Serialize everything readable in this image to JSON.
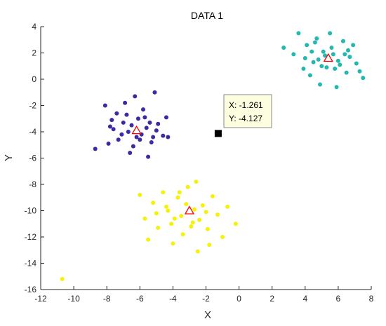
{
  "chart_data": {
    "type": "scatter",
    "title": "DATA 1",
    "xlabel": "X",
    "ylabel": "Y",
    "xlim": [
      -12,
      8
    ],
    "ylim": [
      -16,
      4
    ],
    "xticks": [
      -12,
      -10,
      -8,
      -6,
      -4,
      -2,
      0,
      2,
      4,
      6,
      8
    ],
    "yticks": [
      4,
      2,
      0,
      -2,
      -4,
      -6,
      -8,
      -10,
      -12,
      -14,
      -16
    ],
    "grid": false,
    "colors": {
      "cluster_blue": "#3a2aa3",
      "cluster_teal": "#22b8b0",
      "cluster_yellow": "#f5f20a",
      "centroid": "#ff0000",
      "selected": "#000000",
      "tooltip_bg": "#fdfde0",
      "axis": "#262626"
    },
    "series": [
      {
        "color": "#3a2aa3",
        "center": [
          -6.2,
          -3.9
        ],
        "points": [
          [
            -8.7,
            -5.3
          ],
          [
            -8.1,
            -2.0
          ],
          [
            -7.9,
            -4.9
          ],
          [
            -7.7,
            -3.1
          ],
          [
            -7.4,
            -2.6
          ],
          [
            -7.1,
            -4.2
          ],
          [
            -6.9,
            -1.8
          ],
          [
            -6.6,
            -5.6
          ],
          [
            -6.3,
            -1.3
          ],
          [
            -6.0,
            -4.6
          ],
          [
            -5.8,
            -2.3
          ],
          [
            -5.5,
            -5.9
          ],
          [
            -5.1,
            -1.0
          ],
          [
            -4.9,
            -3.4
          ],
          [
            -4.6,
            -4.3
          ],
          [
            -4.4,
            -2.9
          ],
          [
            -7.6,
            -3.8
          ],
          [
            -7.0,
            -3.3
          ],
          [
            -6.7,
            -4.0
          ],
          [
            -6.5,
            -3.5
          ],
          [
            -6.1,
            -3.0
          ],
          [
            -5.9,
            -4.2
          ],
          [
            -5.6,
            -3.7
          ],
          [
            -5.3,
            -4.8
          ],
          [
            -5.0,
            -3.9
          ],
          [
            -6.8,
            -2.7
          ],
          [
            -6.4,
            -5.1
          ],
          [
            -5.7,
            -2.9
          ],
          [
            -5.2,
            -4.4
          ],
          [
            -7.3,
            -4.6
          ],
          [
            -4.3,
            -4.4
          ],
          [
            -7.8,
            -3.6
          ],
          [
            -6.2,
            -4.4
          ],
          [
            -5.4,
            -3.3
          ]
        ]
      },
      {
        "color": "#22b8b0",
        "center": [
          5.4,
          1.6
        ],
        "points": [
          [
            2.7,
            2.4
          ],
          [
            3.3,
            1.9
          ],
          [
            3.6,
            3.5
          ],
          [
            3.9,
            0.8
          ],
          [
            4.1,
            2.6
          ],
          [
            4.3,
            0.3
          ],
          [
            4.5,
            1.3
          ],
          [
            4.7,
            3.1
          ],
          [
            4.9,
            -0.4
          ],
          [
            5.1,
            2.1
          ],
          [
            5.3,
            0.9
          ],
          [
            5.5,
            3.5
          ],
          [
            5.7,
            1.9
          ],
          [
            5.9,
            -0.6
          ],
          [
            6.1,
            1.1
          ],
          [
            6.3,
            2.9
          ],
          [
            6.5,
            0.5
          ],
          [
            6.7,
            1.7
          ],
          [
            6.9,
            2.6
          ],
          [
            7.1,
            1.2
          ],
          [
            7.3,
            0.6
          ],
          [
            7.5,
            0.1
          ],
          [
            4.4,
            2.1
          ],
          [
            4.8,
            1.5
          ],
          [
            5.0,
            1.0
          ],
          [
            5.6,
            2.4
          ],
          [
            6.0,
            1.4
          ],
          [
            6.4,
            1.9
          ],
          [
            5.2,
            1.8
          ],
          [
            5.8,
            0.8
          ],
          [
            4.6,
            2.8
          ],
          [
            6.6,
            2.2
          ],
          [
            4.0,
            1.6
          ]
        ]
      },
      {
        "color": "#f5f20a",
        "center": [
          -3.0,
          -10.0
        ],
        "points": [
          [
            -10.7,
            -15.2
          ],
          [
            -6.0,
            -8.8
          ],
          [
            -5.7,
            -10.6
          ],
          [
            -5.5,
            -12.2
          ],
          [
            -5.2,
            -9.4
          ],
          [
            -4.9,
            -11.3
          ],
          [
            -4.6,
            -8.6
          ],
          [
            -4.3,
            -10.0
          ],
          [
            -4.0,
            -12.5
          ],
          [
            -3.7,
            -9.0
          ],
          [
            -3.4,
            -11.8
          ],
          [
            -3.1,
            -8.2
          ],
          [
            -2.8,
            -10.9
          ],
          [
            -2.5,
            -13.1
          ],
          [
            -2.2,
            -9.6
          ],
          [
            -1.9,
            -11.4
          ],
          [
            -1.6,
            -8.9
          ],
          [
            -1.3,
            -10.3
          ],
          [
            -1.0,
            -12.0
          ],
          [
            -0.7,
            -9.7
          ],
          [
            -0.2,
            -11.0
          ],
          [
            -5.0,
            -10.2
          ],
          [
            -4.4,
            -9.7
          ],
          [
            -3.9,
            -10.6
          ],
          [
            -3.5,
            -10.4
          ],
          [
            -3.2,
            -9.5
          ],
          [
            -2.7,
            -9.9
          ],
          [
            -2.4,
            -10.7
          ],
          [
            -2.0,
            -10.1
          ],
          [
            -2.9,
            -11.2
          ],
          [
            -4.1,
            -11.0
          ],
          [
            -3.6,
            -8.6
          ],
          [
            -1.8,
            -12.6
          ],
          [
            -2.6,
            -7.8
          ]
        ]
      }
    ],
    "selected_point": [
      -1.261,
      -4.127
    ],
    "datatip": {
      "x_text": "X: -1.261",
      "y_text": "Y: -4.127"
    }
  }
}
